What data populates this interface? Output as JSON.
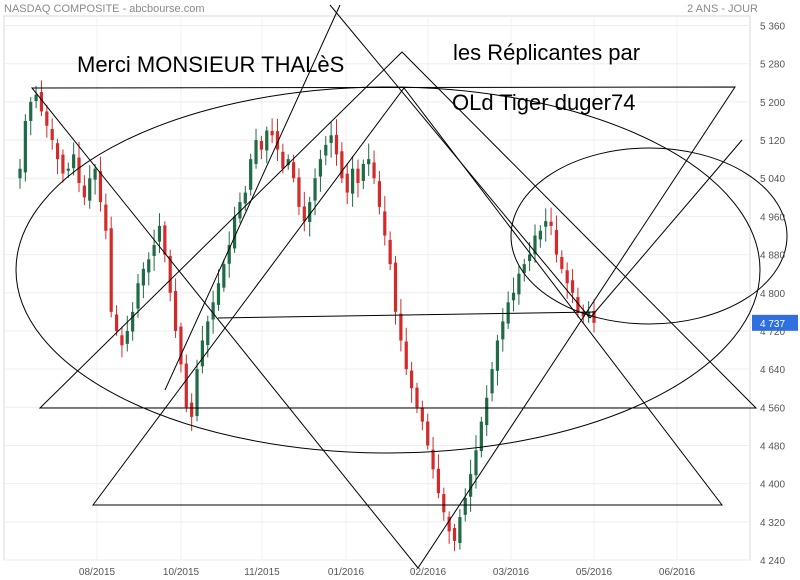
{
  "header": {
    "title": "NASDAQ COMPOSITE - abcbourse.com",
    "period": "2 ANS - JOUR"
  },
  "annotations": {
    "line1": "Merci MONSIEUR THALèS",
    "line2": "les Réplicantes par",
    "line3": "OLd Tiger duger74"
  },
  "colors": {
    "up": "#1f6b44",
    "down": "#d42a2a",
    "lastPriceBadge": "#2f6fe0",
    "drawing": "#000000",
    "axisText": "#555555"
  },
  "chart_data": {
    "type": "candlestick",
    "ylim": [
      4240,
      5380
    ],
    "yticks": [
      4240,
      4320,
      4400,
      4480,
      4560,
      4640,
      4720,
      4800,
      4880,
      4960,
      5040,
      5120,
      5200,
      5280,
      5360
    ],
    "ytick_labels": [
      "4 240",
      "4 320",
      "4 400",
      "4 480",
      "4 560",
      "4 640",
      "4 720",
      "4 800",
      "4 880",
      "4 960",
      "5 040",
      "5 120",
      "5 200",
      "5 280",
      "5 360"
    ],
    "xticks": [
      "08/2015",
      "10/2015",
      "11/2015",
      "01/2016",
      "02/2016",
      "03/2016",
      "05/2016",
      "06/2016"
    ],
    "last_price": 4737,
    "last_price_label": "4 737",
    "grid": true,
    "closes": [
      5060,
      5160,
      5200,
      5215,
      5180,
      5150,
      5120,
      5080,
      5050,
      5060,
      5090,
      5030,
      5000,
      5040,
      5060,
      4990,
      4930,
      4760,
      4720,
      4690,
      4720,
      4760,
      4820,
      4850,
      4870,
      4900,
      4940,
      4880,
      4800,
      4720,
      4650,
      4560,
      4540,
      4640,
      4700,
      4740,
      4780,
      4820,
      4860,
      4900,
      4960,
      4990,
      5010,
      5080,
      5120,
      5100,
      5140,
      5130,
      5100,
      5060,
      5080,
      5040,
      4980,
      4950,
      4990,
      5040,
      5080,
      5110,
      5130,
      5090,
      5040,
      5010,
      5060,
      5030,
      5070,
      5080,
      5040,
      4980,
      4920,
      4860,
      4760,
      4700,
      4640,
      4600,
      4560,
      4530,
      4480,
      4430,
      4380,
      4340,
      4300,
      4280,
      4330,
      4370,
      4420,
      4470,
      4530,
      4580,
      4640,
      4700,
      4740,
      4780,
      4800,
      4840,
      4860,
      4880,
      4920,
      4930,
      4950,
      4940,
      4880,
      4850,
      4820,
      4800,
      4760,
      4750,
      4760,
      4737
    ]
  }
}
